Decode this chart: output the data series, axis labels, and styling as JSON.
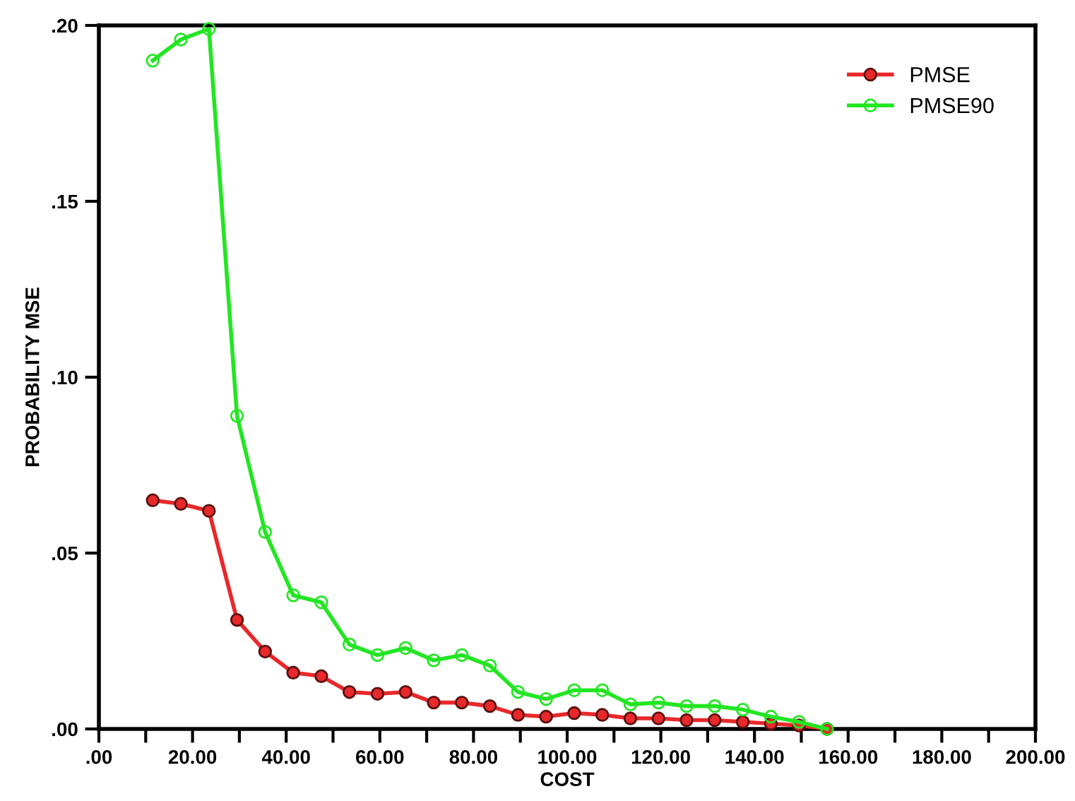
{
  "chart_data": {
    "type": "line",
    "xlabel": "COST",
    "ylabel": "PROBABILITY MSE",
    "x": [
      11.5,
      17.5,
      23.5,
      29.5,
      35.5,
      41.5,
      47.5,
      53.5,
      59.5,
      65.5,
      71.5,
      77.5,
      83.5,
      89.5,
      95.5,
      101.5,
      107.5,
      113.5,
      119.5,
      125.5,
      131.5,
      137.5,
      143.5,
      149.5,
      155.5
    ],
    "series": [
      {
        "name": "PMSE",
        "color": "#e8282a",
        "marker": "circle",
        "values": [
          0.065,
          0.064,
          0.062,
          0.031,
          0.022,
          0.016,
          0.015,
          0.0105,
          0.01,
          0.0105,
          0.0075,
          0.0075,
          0.0065,
          0.004,
          0.0035,
          0.0045,
          0.004,
          0.003,
          0.003,
          0.0025,
          0.0025,
          0.002,
          0.0015,
          0.001,
          0.0
        ]
      },
      {
        "name": "PMSE90",
        "color": "#22e622",
        "marker": "circle",
        "values": [
          0.19,
          0.196,
          0.199,
          0.089,
          0.056,
          0.038,
          0.036,
          0.024,
          0.021,
          0.023,
          0.0195,
          0.021,
          0.018,
          0.0105,
          0.0085,
          0.011,
          0.011,
          0.007,
          0.0075,
          0.0065,
          0.0065,
          0.0055,
          0.0035,
          0.002,
          0.0
        ]
      }
    ],
    "xlim": [
      0,
      200
    ],
    "xticks": [
      {
        "value": 0,
        "label": ".00"
      },
      {
        "value": 10,
        "label": null
      },
      {
        "value": 20,
        "label": "20.00"
      },
      {
        "value": 30,
        "label": null
      },
      {
        "value": 40,
        "label": "40.00"
      },
      {
        "value": 50,
        "label": null
      },
      {
        "value": 60,
        "label": "60.00"
      },
      {
        "value": 70,
        "label": null
      },
      {
        "value": 80,
        "label": "80.00"
      },
      {
        "value": 90,
        "label": null
      },
      {
        "value": 100,
        "label": "100.00"
      },
      {
        "value": 110,
        "label": null
      },
      {
        "value": 120,
        "label": "120.00"
      },
      {
        "value": 130,
        "label": null
      },
      {
        "value": 140,
        "label": "140.00"
      },
      {
        "value": 150,
        "label": null
      },
      {
        "value": 160,
        "label": "160.00"
      },
      {
        "value": 170,
        "label": null
      },
      {
        "value": 180,
        "label": "180.00"
      },
      {
        "value": 190,
        "label": null
      },
      {
        "value": 200,
        "label": "200.00"
      }
    ],
    "ylim": [
      0,
      0.2
    ],
    "yticks": [
      {
        "value": 0,
        "label": ".00"
      },
      {
        "value": 0.05,
        "label": ".05"
      },
      {
        "value": 0.1,
        "label": ".10"
      },
      {
        "value": 0.15,
        "label": ".15"
      },
      {
        "value": 0.2,
        "label": ".20"
      }
    ],
    "grid": false,
    "legend": "top right",
    "line_style": "solid"
  }
}
